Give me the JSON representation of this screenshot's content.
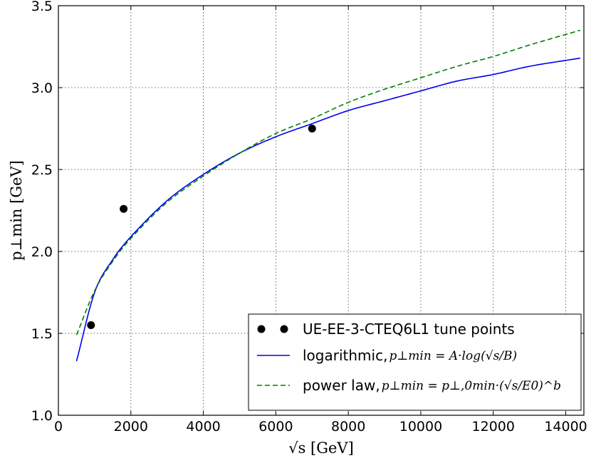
{
  "chart_data": {
    "type": "line",
    "xlabel": "√s [GeV]",
    "ylabel": "p⊥min [GeV]",
    "xlim": [
      0,
      14500
    ],
    "ylim": [
      1.0,
      3.5
    ],
    "xticks": [
      0,
      2000,
      4000,
      6000,
      8000,
      10000,
      12000,
      14000
    ],
    "yticks": [
      1.0,
      1.5,
      2.0,
      2.5,
      3.0,
      3.5
    ],
    "xtick_labels": [
      "0",
      "2000",
      "4000",
      "6000",
      "8000",
      "10000",
      "12000",
      "14000"
    ],
    "ytick_labels": [
      "1.0",
      "1.5",
      "2.0",
      "2.5",
      "3.0",
      "3.5"
    ],
    "grid": true,
    "legend_position": "lower-right",
    "series": [
      {
        "name": "UE-EE-3-CTEQ6L1 tune points",
        "kind": "scatter",
        "color": "#000000",
        "x": [
          900,
          1800,
          7000
        ],
        "y": [
          1.55,
          2.26,
          2.75
        ]
      },
      {
        "name": "logarithmic, p⊥min = A·log(√s/B)",
        "legend_prefix": "logarithmic, ",
        "legend_math": "p⊥min = A·log(√s/B)",
        "kind": "line",
        "style": "solid",
        "color": "#0000ee",
        "x": [
          500,
          1000,
          1500,
          2000,
          3000,
          4000,
          5000,
          6000,
          7000,
          8000,
          9000,
          10000,
          11000,
          12000,
          13000,
          14400
        ],
        "y": [
          1.33,
          1.75,
          1.95,
          2.09,
          2.31,
          2.47,
          2.6,
          2.7,
          2.78,
          2.86,
          2.92,
          2.98,
          3.04,
          3.08,
          3.13,
          3.18
        ]
      },
      {
        "name": "power law, p⊥min = p⊥,0min·(√s/E0)^b",
        "legend_prefix": "power law, ",
        "legend_math": "p⊥min = p⊥,0min·(√s/E0)^b",
        "kind": "line",
        "style": "dashed",
        "color": "#008000",
        "x": [
          500,
          1000,
          1500,
          2000,
          3000,
          4000,
          5000,
          6000,
          7000,
          8000,
          9000,
          10000,
          11000,
          12000,
          13000,
          14400
        ],
        "y": [
          1.49,
          1.76,
          1.94,
          2.08,
          2.3,
          2.46,
          2.6,
          2.72,
          2.81,
          2.91,
          2.99,
          3.06,
          3.13,
          3.19,
          3.26,
          3.35
        ]
      }
    ]
  }
}
